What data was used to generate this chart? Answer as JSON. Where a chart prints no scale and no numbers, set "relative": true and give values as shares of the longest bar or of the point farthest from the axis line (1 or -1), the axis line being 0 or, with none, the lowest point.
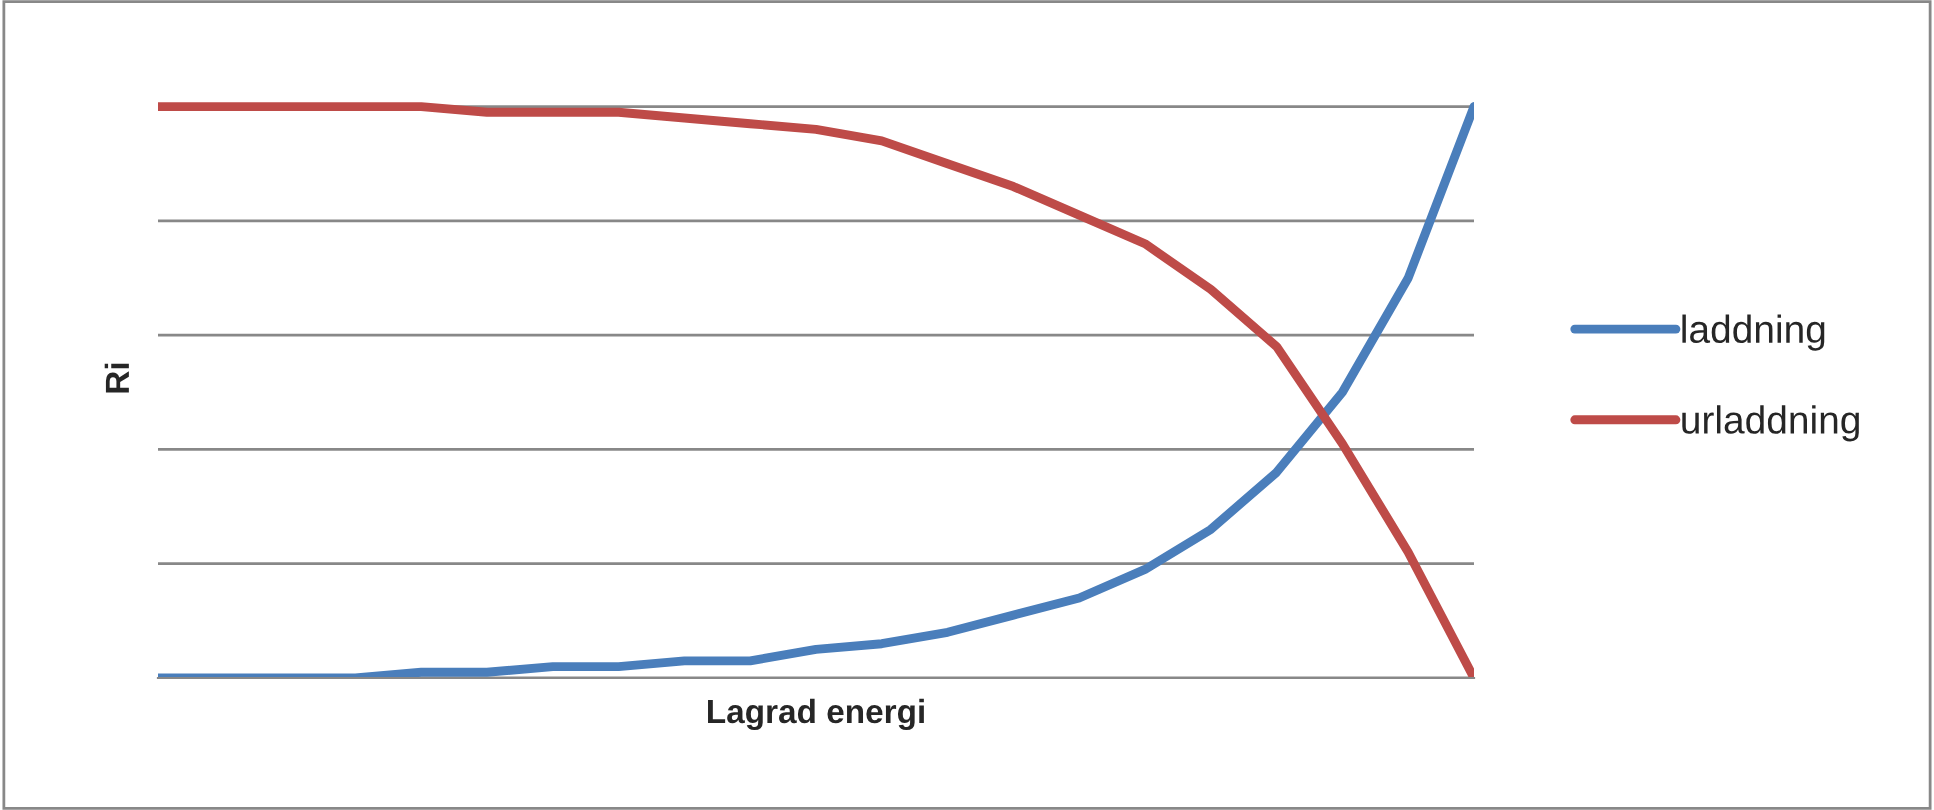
{
  "chart_data": {
    "type": "line",
    "relative": true,
    "xlabel": "Lagrad energi",
    "ylabel": "Ri",
    "categories": [
      null,
      null,
      null,
      null,
      null,
      null,
      null,
      null,
      null,
      null,
      null,
      null,
      null,
      null,
      null,
      null,
      null,
      null,
      null,
      null,
      null
    ],
    "series": [
      {
        "name": "laddning",
        "color": "#4a7ebb",
        "values": [
          0,
          0,
          0,
          0,
          0.01,
          0.01,
          0.02,
          0.02,
          0.03,
          0.03,
          0.05,
          0.06,
          0.08,
          0.11,
          0.14,
          0.19,
          0.26,
          0.36,
          0.5,
          0.7,
          1
        ]
      },
      {
        "name": "urladdning",
        "color": "#be4b48",
        "values": [
          1,
          1,
          1,
          1,
          1,
          0.99,
          0.99,
          0.99,
          0.98,
          0.97,
          0.96,
          0.94,
          0.9,
          0.86,
          0.81,
          0.76,
          0.68,
          0.58,
          0.41,
          0.22,
          0
        ]
      }
    ],
    "grid": "y",
    "legend": "right",
    "marker": "none",
    "line_style": "solid"
  }
}
